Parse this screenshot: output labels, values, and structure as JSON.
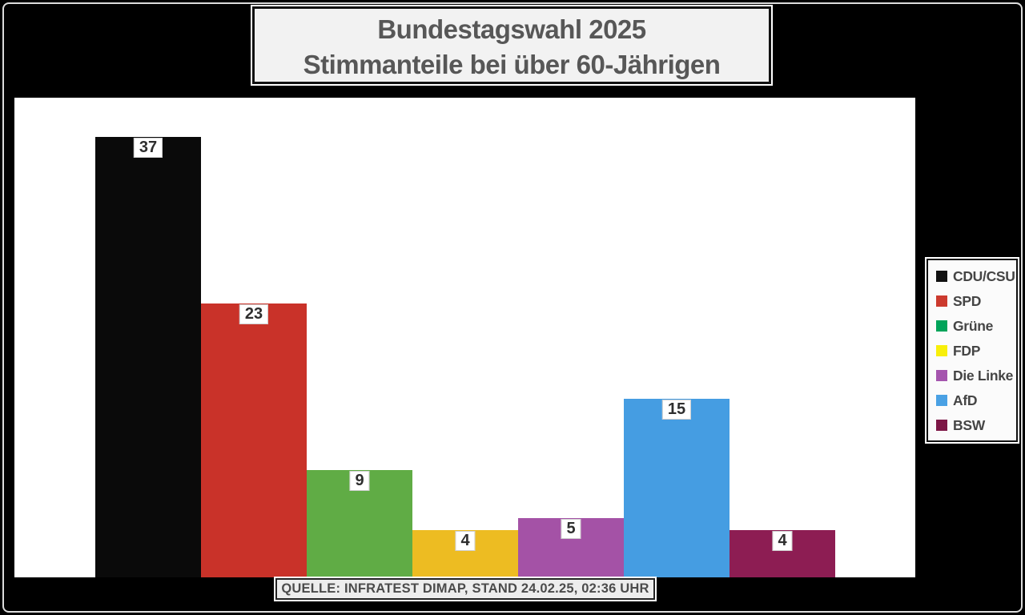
{
  "title": {
    "line1": "Bundestagswahl 2025",
    "line2": "Stimmanteile bei über 60-Jährigen"
  },
  "source": "QUELLE: INFRATEST DIMAP, STAND 24.02.25, 02:36 UHR",
  "colors": {
    "background": "#000000",
    "plot_background": "#ffffff",
    "frame_outline": "#dcdcdc",
    "panel_background": "#f2f2f2",
    "text": "#575757"
  },
  "chart_data": {
    "type": "bar",
    "title": "Bundestagswahl 2025 — Stimmanteile bei über 60-Jährigen",
    "categories": [
      "CDU/CSU",
      "SPD",
      "Grüne",
      "FDP",
      "Die Linke",
      "AfD",
      "BSW"
    ],
    "values": [
      37,
      23,
      9,
      4,
      5,
      15,
      4
    ],
    "xlabel": "",
    "ylabel": "",
    "ylim": [
      0,
      40.3
    ],
    "grid": false,
    "legend_position": "right",
    "value_labels": true,
    "parties": [
      {
        "label": "CDU/CSU",
        "slug": "cdu-csu",
        "value": 37,
        "bar_color": "#0a0a0a",
        "legend_color": "#121212"
      },
      {
        "label": "SPD",
        "slug": "spd",
        "value": 23,
        "bar_color": "#c93229",
        "legend_color": "#cc3a2e"
      },
      {
        "label": "Grüne",
        "slug": "gruene",
        "value": 9,
        "bar_color": "#60ac45",
        "legend_color": "#00a45a"
      },
      {
        "label": "FDP",
        "slug": "fdp",
        "value": 4,
        "bar_color": "#edbc22",
        "legend_color": "#f8ef0a"
      },
      {
        "label": "Die Linke",
        "slug": "die-linke",
        "value": 5,
        "bar_color": "#a452a6",
        "legend_color": "#a555ae"
      },
      {
        "label": "AfD",
        "slug": "afd",
        "value": 15,
        "bar_color": "#459de2",
        "legend_color": "#4aa1e4"
      },
      {
        "label": "BSW",
        "slug": "bsw",
        "value": 4,
        "bar_color": "#8d1d53",
        "legend_color": "#7d1746"
      }
    ]
  }
}
